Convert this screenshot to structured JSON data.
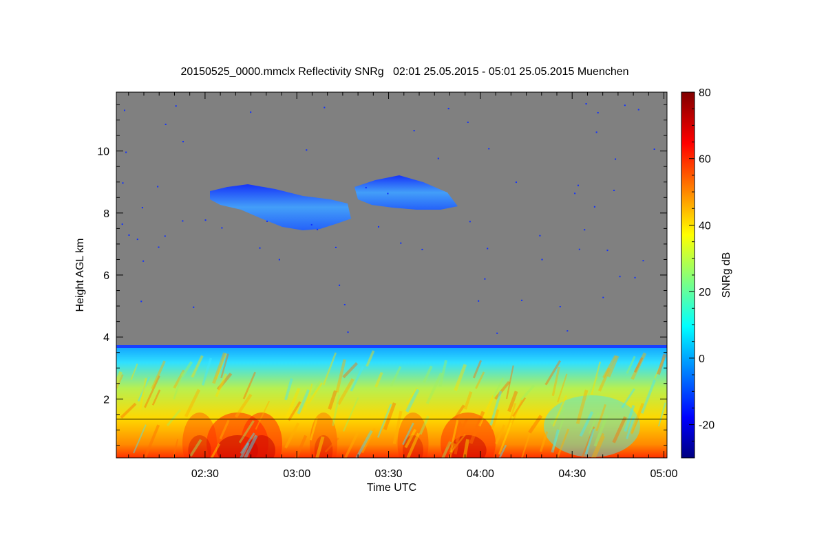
{
  "chart_data": {
    "type": "heatmap",
    "title": "20150525_0000.mmclx Reflectivity SNRg   02:01 25.05.2015 - 05:01 25.05.2015 Muenchen",
    "xlabel": "Time UTC",
    "ylabel": "Height AGL km",
    "colorbar_label": "SNRg dB",
    "x_range": [
      "02:01",
      "05:01"
    ],
    "x_ticks": [
      "02:30",
      "03:00",
      "03:30",
      "04:00",
      "04:30",
      "05:00"
    ],
    "ylim": [
      0.1,
      11.9
    ],
    "y_ticks": [
      2,
      4,
      6,
      8,
      10
    ],
    "colorbar_range": [
      -30,
      80
    ],
    "colorbar_ticks": [
      -20,
      0,
      20,
      40,
      60,
      80
    ],
    "colormap": "jet",
    "no_signal_color": "#808080",
    "reference_line_height_km": 1.35,
    "features": [
      {
        "name": "boundary layer",
        "height_km": [
          0.1,
          3.8
        ],
        "snr_db": [
          0,
          65
        ]
      },
      {
        "name": "cloud 1",
        "time": [
          "02:32",
          "03:18"
        ],
        "height_km": [
          7.5,
          9.0
        ],
        "snr_db": [
          -20,
          5
        ]
      },
      {
        "name": "cloud 2",
        "time": [
          "03:20",
          "03:58"
        ],
        "height_km": [
          8.2,
          9.3
        ],
        "snr_db": [
          -20,
          5
        ]
      }
    ],
    "grid": false,
    "legend": "colorbar-right"
  }
}
